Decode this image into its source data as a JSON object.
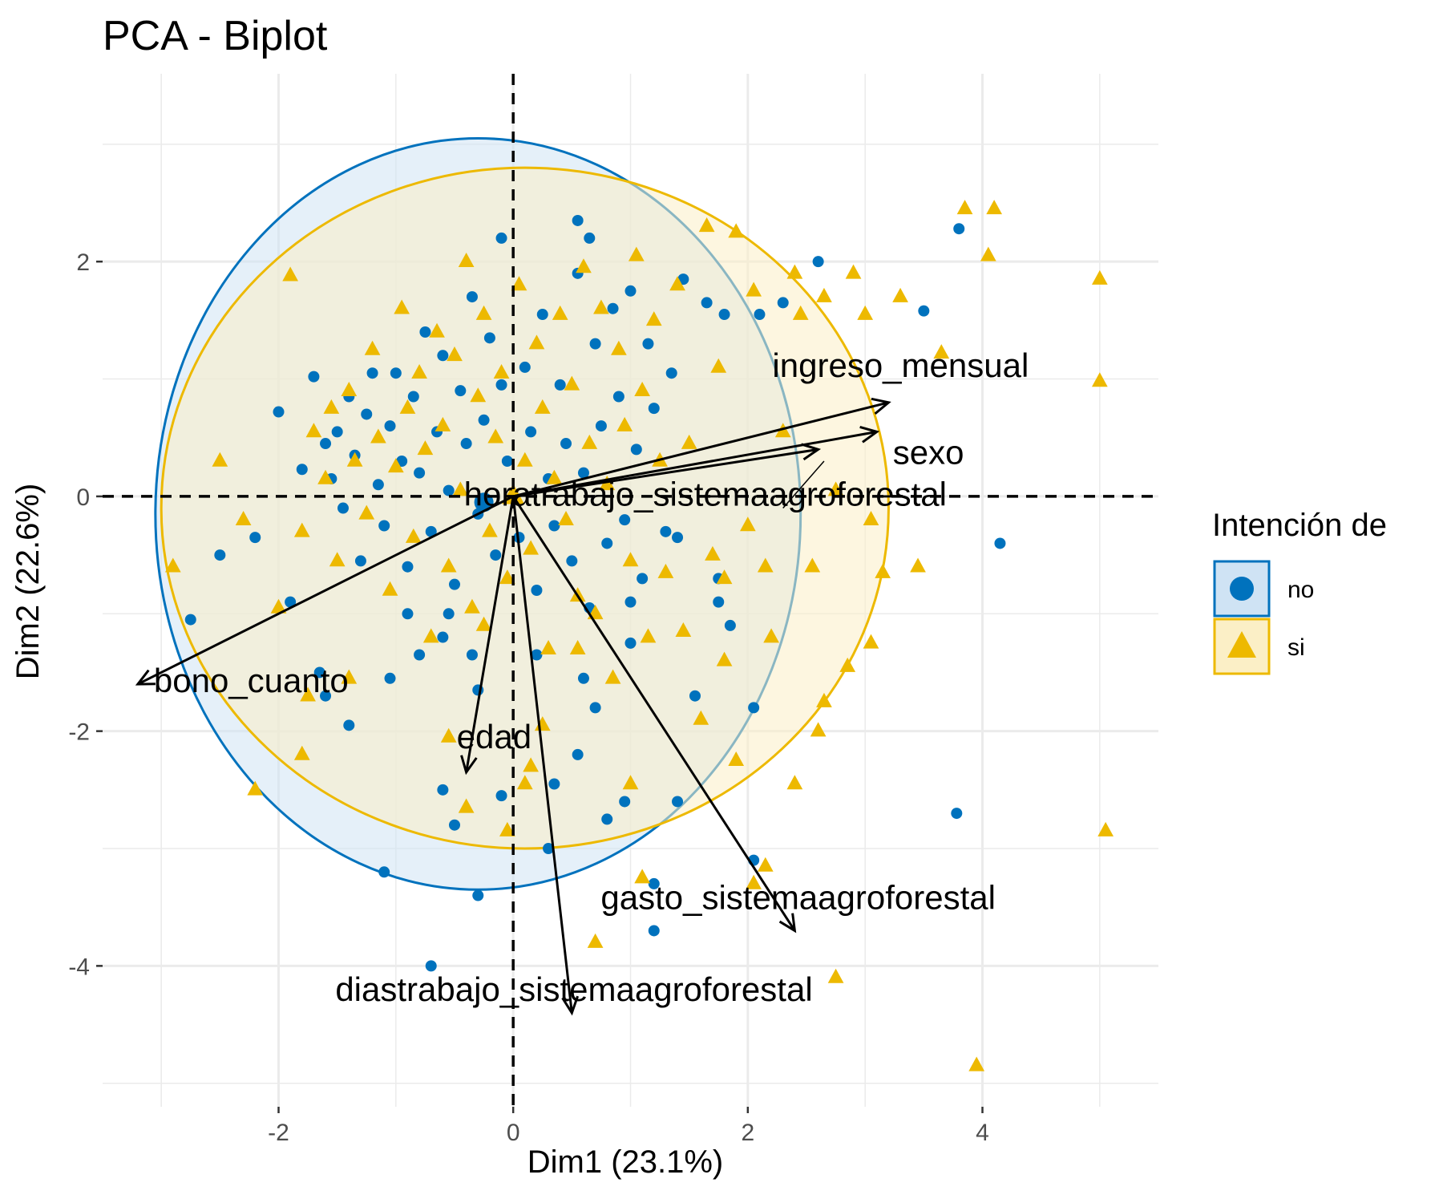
{
  "chart_data": {
    "type": "scatter",
    "title": "PCA - Biplot",
    "xlabel": "Dim1 (23.1%)",
    "ylabel": "Dim2 (22.6%)",
    "xlim": [
      -3.5,
      5.5
    ],
    "ylim": [
      -5.2,
      3.6
    ],
    "x_ticks": [
      -2,
      0,
      2,
      4
    ],
    "y_ticks": [
      2,
      0,
      -2,
      -4
    ],
    "x_tick_labels": [
      "-2",
      "0",
      "2",
      "4"
    ],
    "y_tick_labels": [
      "2",
      "0",
      "-2",
      "-4"
    ],
    "grid": true,
    "reference_lines": {
      "x": 0,
      "y": 0,
      "style": "dashed"
    },
    "legend": {
      "title": "Intención de",
      "position": "right",
      "entries": [
        {
          "label": "no",
          "color": "#0072BD",
          "marker": "circle"
        },
        {
          "label": "si",
          "color": "#EDB900",
          "marker": "triangle"
        }
      ]
    },
    "ellipses": [
      {
        "group": "no",
        "center": [
          -0.3,
          -0.15
        ],
        "radii": [
          2.75,
          3.2
        ],
        "color": "#0072BD",
        "fill": "#cfe3f4"
      },
      {
        "group": "si",
        "center": [
          0.1,
          -0.1
        ],
        "radii": [
          3.1,
          2.9
        ],
        "color": "#EDB900",
        "fill": "#fbefc6"
      }
    ],
    "group_centroids": [
      {
        "group": "no",
        "x": -0.25,
        "y": -0.05
      },
      {
        "group": "si",
        "x": 0.0,
        "y": 0.0
      }
    ],
    "vectors": [
      {
        "name": "ingreso_mensual",
        "x": 3.2,
        "y": 0.8
      },
      {
        "name": "sexo",
        "x": 3.1,
        "y": 0.55
      },
      {
        "name": "horatrabajo_sistemaagroforestal",
        "x": 2.6,
        "y": 0.4
      },
      {
        "name": "bono_cuanto",
        "x": -3.2,
        "y": -1.6
      },
      {
        "name": "edad",
        "x": -0.4,
        "y": -2.35
      },
      {
        "name": "gasto_sistemaagroforestal",
        "x": 2.4,
        "y": -3.7
      },
      {
        "name": "diastrabajo_sistemaagroforestal",
        "x": 0.5,
        "y": -4.4
      }
    ],
    "series": [
      {
        "name": "no",
        "points": [
          [
            -2.2,
            -0.35
          ],
          [
            -2.0,
            0.72
          ],
          [
            -1.8,
            0.23
          ],
          [
            -1.7,
            1.02
          ],
          [
            -1.6,
            0.45
          ],
          [
            -1.55,
            0.15
          ],
          [
            -1.5,
            0.55
          ],
          [
            -1.45,
            -0.1
          ],
          [
            -1.4,
            0.85
          ],
          [
            -1.35,
            0.35
          ],
          [
            -1.3,
            -0.55
          ],
          [
            -1.25,
            0.7
          ],
          [
            -1.2,
            1.05
          ],
          [
            -1.15,
            0.1
          ],
          [
            -1.1,
            -0.25
          ],
          [
            -1.05,
            0.6
          ],
          [
            -1.0,
            1.05
          ],
          [
            -0.95,
            0.3
          ],
          [
            -0.9,
            -0.6
          ],
          [
            -0.85,
            0.85
          ],
          [
            -0.8,
            0.2
          ],
          [
            -0.75,
            1.4
          ],
          [
            -0.7,
            -0.3
          ],
          [
            -0.65,
            0.55
          ],
          [
            -0.6,
            1.2
          ],
          [
            -0.55,
            0.05
          ],
          [
            -0.5,
            -0.75
          ],
          [
            -0.45,
            0.9
          ],
          [
            -0.4,
            0.45
          ],
          [
            -0.35,
            1.7
          ],
          [
            -0.3,
            -0.15
          ],
          [
            -0.25,
            0.65
          ],
          [
            -0.2,
            1.35
          ],
          [
            -0.15,
            -0.5
          ],
          [
            -0.1,
            0.95
          ],
          [
            -0.05,
            0.3
          ],
          [
            0.05,
            -0.35
          ],
          [
            0.1,
            1.1
          ],
          [
            0.15,
            0.55
          ],
          [
            0.2,
            -0.8
          ],
          [
            0.25,
            1.55
          ],
          [
            0.3,
            0.15
          ],
          [
            0.35,
            -0.25
          ],
          [
            0.4,
            0.95
          ],
          [
            0.45,
            0.45
          ],
          [
            0.5,
            -0.55
          ],
          [
            0.55,
            1.9
          ],
          [
            0.6,
            0.2
          ],
          [
            0.65,
            -0.95
          ],
          [
            0.7,
            1.3
          ],
          [
            0.75,
            0.6
          ],
          [
            0.8,
            -0.4
          ],
          [
            0.85,
            1.6
          ],
          [
            0.9,
            0.85
          ],
          [
            0.95,
            -0.2
          ],
          [
            1.0,
            1.75
          ],
          [
            1.05,
            0.4
          ],
          [
            1.1,
            -0.7
          ],
          [
            1.15,
            1.3
          ],
          [
            1.2,
            0.75
          ],
          [
            1.3,
            -0.3
          ],
          [
            1.35,
            1.05
          ],
          [
            1.4,
            -0.35
          ],
          [
            1.45,
            1.85
          ],
          [
            1.55,
            -1.7
          ],
          [
            1.65,
            1.65
          ],
          [
            1.75,
            -0.7
          ],
          [
            1.8,
            1.55
          ],
          [
            1.85,
            -1.1
          ],
          [
            2.05,
            -1.8
          ],
          [
            2.1,
            1.55
          ],
          [
            2.3,
            1.65
          ],
          [
            2.6,
            2.0
          ],
          [
            3.5,
            1.58
          ],
          [
            3.8,
            2.28
          ],
          [
            4.15,
            -0.4
          ],
          [
            3.78,
            -2.7
          ],
          [
            -1.65,
            -1.5
          ],
          [
            -1.4,
            -1.95
          ],
          [
            -1.05,
            -1.55
          ],
          [
            -2.75,
            -1.05
          ],
          [
            -0.6,
            -1.2
          ],
          [
            -0.35,
            -1.35
          ],
          [
            -0.1,
            -2.55
          ],
          [
            0.7,
            -1.8
          ],
          [
            0.95,
            -2.6
          ],
          [
            1.4,
            -2.6
          ],
          [
            1.2,
            -3.3
          ],
          [
            2.05,
            -3.1
          ],
          [
            1.2,
            -3.7
          ],
          [
            0.8,
            -2.75
          ],
          [
            -0.3,
            -3.4
          ],
          [
            -0.5,
            -2.8
          ],
          [
            -0.6,
            -2.5
          ],
          [
            -1.1,
            -3.2
          ],
          [
            -0.7,
            -4.0
          ],
          [
            0.3,
            -3.0
          ],
          [
            0.55,
            -2.2
          ],
          [
            0.35,
            -2.45
          ],
          [
            -0.9,
            -1.0
          ],
          [
            -0.8,
            -1.35
          ],
          [
            -0.55,
            -1.0
          ],
          [
            -0.3,
            -1.65
          ],
          [
            0.2,
            -1.35
          ],
          [
            0.6,
            -1.55
          ],
          [
            1.0,
            -1.25
          ],
          [
            -1.9,
            -0.9
          ],
          [
            -1.6,
            -1.7
          ],
          [
            -2.5,
            -0.5
          ],
          [
            -0.1,
            2.2
          ],
          [
            0.55,
            2.35
          ],
          [
            0.65,
            2.2
          ],
          [
            1.0,
            -0.9
          ],
          [
            1.75,
            -0.9
          ]
        ]
      },
      {
        "name": "si",
        "points": [
          [
            -2.9,
            -0.6
          ],
          [
            -2.5,
            0.3
          ],
          [
            -2.3,
            -0.2
          ],
          [
            -1.9,
            1.88
          ],
          [
            -1.8,
            -0.3
          ],
          [
            -1.7,
            0.55
          ],
          [
            -1.6,
            0.15
          ],
          [
            -1.55,
            0.75
          ],
          [
            -1.5,
            -0.55
          ],
          [
            -1.4,
            0.9
          ],
          [
            -1.35,
            0.3
          ],
          [
            -1.25,
            -0.15
          ],
          [
            -1.2,
            1.25
          ],
          [
            -1.15,
            0.5
          ],
          [
            -1.05,
            -0.8
          ],
          [
            -1.0,
            0.25
          ],
          [
            -0.95,
            1.6
          ],
          [
            -0.9,
            0.75
          ],
          [
            -0.85,
            -0.35
          ],
          [
            -0.8,
            1.05
          ],
          [
            -0.75,
            0.4
          ],
          [
            -0.7,
            -1.2
          ],
          [
            -0.65,
            1.4
          ],
          [
            -0.6,
            0.6
          ],
          [
            -0.55,
            -0.6
          ],
          [
            -0.5,
            1.2
          ],
          [
            -0.45,
            0.05
          ],
          [
            -0.4,
            2.0
          ],
          [
            -0.35,
            -0.95
          ],
          [
            -0.3,
            0.85
          ],
          [
            -0.25,
            1.55
          ],
          [
            -0.2,
            -0.3
          ],
          [
            -0.15,
            0.5
          ],
          [
            -0.1,
            1.05
          ],
          [
            -0.05,
            -0.7
          ],
          [
            0.05,
            1.8
          ],
          [
            0.1,
            0.3
          ],
          [
            0.15,
            -0.45
          ],
          [
            0.2,
            1.3
          ],
          [
            0.25,
            0.75
          ],
          [
            0.3,
            -1.3
          ],
          [
            0.35,
            0.15
          ],
          [
            0.4,
            1.55
          ],
          [
            0.45,
            -0.2
          ],
          [
            0.5,
            0.95
          ],
          [
            0.55,
            -0.85
          ],
          [
            0.6,
            1.95
          ],
          [
            0.65,
            0.45
          ],
          [
            0.7,
            -1.0
          ],
          [
            0.75,
            1.6
          ],
          [
            0.8,
            0.1
          ],
          [
            0.85,
            -1.55
          ],
          [
            0.9,
            1.25
          ],
          [
            0.95,
            0.6
          ],
          [
            1.0,
            -0.55
          ],
          [
            1.05,
            2.05
          ],
          [
            1.1,
            0.9
          ],
          [
            1.15,
            -1.2
          ],
          [
            1.2,
            1.5
          ],
          [
            1.25,
            0.3
          ],
          [
            1.3,
            -0.65
          ],
          [
            1.4,
            1.8
          ],
          [
            1.5,
            0.45
          ],
          [
            1.6,
            -1.9
          ],
          [
            1.65,
            2.3
          ],
          [
            1.7,
            -0.5
          ],
          [
            1.75,
            1.1
          ],
          [
            1.8,
            -1.4
          ],
          [
            1.9,
            2.25
          ],
          [
            2.0,
            -0.25
          ],
          [
            2.05,
            1.75
          ],
          [
            2.15,
            -0.6
          ],
          [
            2.2,
            -1.2
          ],
          [
            2.3,
            0.55
          ],
          [
            2.4,
            1.9
          ],
          [
            2.45,
            1.55
          ],
          [
            2.55,
            -0.6
          ],
          [
            2.6,
            -2.0
          ],
          [
            2.65,
            1.7
          ],
          [
            2.75,
            0.05
          ],
          [
            2.85,
            -1.45
          ],
          [
            2.9,
            1.9
          ],
          [
            3.0,
            1.55
          ],
          [
            3.05,
            -0.2
          ],
          [
            3.15,
            -0.65
          ],
          [
            3.3,
            1.7
          ],
          [
            3.45,
            -0.6
          ],
          [
            3.65,
            1.22
          ],
          [
            3.85,
            2.45
          ],
          [
            4.05,
            2.05
          ],
          [
            4.1,
            2.45
          ],
          [
            5.0,
            1.85
          ],
          [
            5.0,
            0.98
          ],
          [
            5.05,
            -2.85
          ],
          [
            3.95,
            -4.85
          ],
          [
            2.75,
            -4.1
          ],
          [
            0.7,
            -3.8
          ],
          [
            1.1,
            -3.25
          ],
          [
            2.05,
            -3.3
          ],
          [
            0.25,
            -1.95
          ],
          [
            0.15,
            -2.3
          ],
          [
            0.1,
            -2.45
          ],
          [
            -0.4,
            -2.65
          ],
          [
            -0.55,
            -2.05
          ],
          [
            -0.05,
            -2.85
          ],
          [
            -2.2,
            -2.5
          ],
          [
            -1.75,
            -1.7
          ],
          [
            -1.8,
            -2.2
          ],
          [
            -1.4,
            -1.55
          ],
          [
            -2.0,
            -0.95
          ],
          [
            -0.25,
            -1.1
          ],
          [
            0.55,
            -1.3
          ],
          [
            1.45,
            -1.15
          ],
          [
            2.4,
            -2.45
          ],
          [
            2.65,
            -1.75
          ],
          [
            3.05,
            -1.25
          ],
          [
            1.8,
            -0.7
          ],
          [
            1.9,
            -2.25
          ],
          [
            2.15,
            -3.15
          ],
          [
            1.0,
            -2.45
          ]
        ]
      }
    ]
  }
}
